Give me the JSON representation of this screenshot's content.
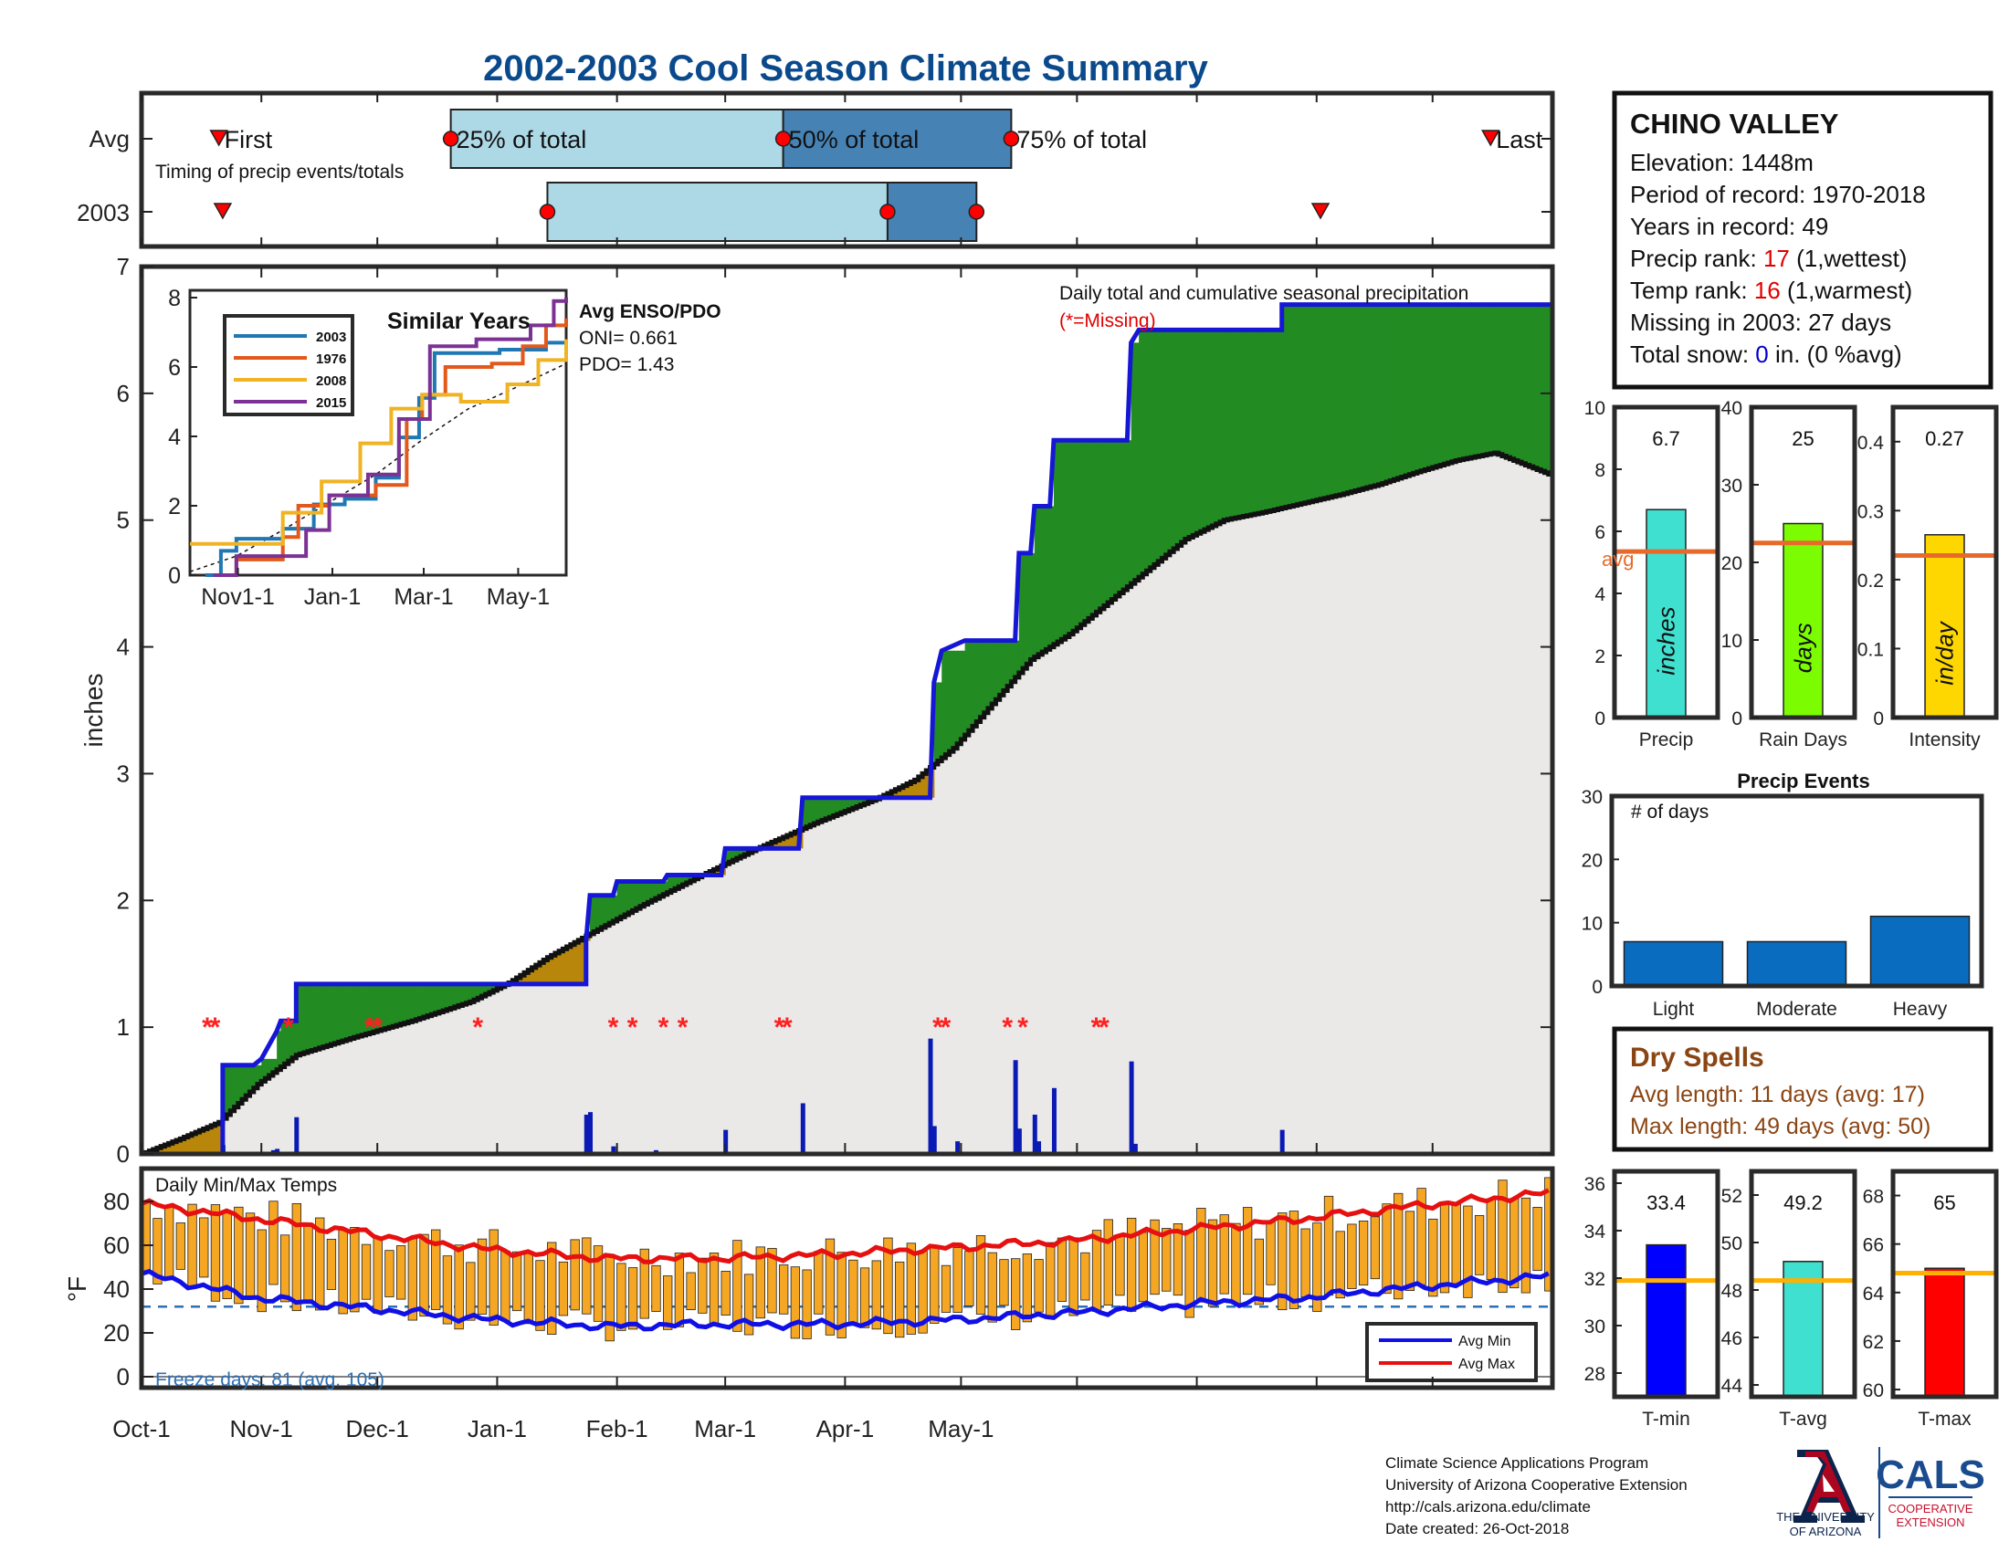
{
  "title": "2002-2003 Cool Season Climate Summary",
  "colors": {
    "title": "#0a4a8c",
    "q1": "#add8e6",
    "q2": "#4682b4",
    "cum_line": "#1616d6",
    "above": "#228b22",
    "below": "#b8860b",
    "avg_fill": "#ebe8e8",
    "daily_bar": "#0a1ab4",
    "missing": "#ff2020",
    "rank_red": "#e00000",
    "snow_blue": "#0000cc",
    "dry_brown": "#8b4513",
    "temp_bar": "#f5a623",
    "avg_min": "#1010e6",
    "avg_max": "#e61010",
    "freeze": "#2e6fb5",
    "avg_marker": "#e86a2a",
    "avg_marker_temp": "#ffb000",
    "ua_red": "#ab0520",
    "ua_blue": "#0c234b",
    "cals_blue": "#1b4b8f",
    "cals_red": "#c8102e"
  },
  "timing": {
    "row_labels": [
      "Avg",
      "2003"
    ],
    "subtitle": "Timing of precip events/totals",
    "labels": {
      "first": "First",
      "p25": "25% of total",
      "p50": "50% of total",
      "p75": "75% of total",
      "last": "Last"
    },
    "avg": {
      "first": 20,
      "p25": 80,
      "p50": 166,
      "p75": 225,
      "last": 349
    },
    "y2003": {
      "first": 21,
      "p25": 105,
      "p50": 193,
      "p75": 216,
      "last": 305
    }
  },
  "station": {
    "name": "CHINO VALLEY",
    "elevation": "Elevation: 1448m",
    "period": "Period of record: 1970-2018",
    "years": "Years in record: 49",
    "precip_rank_label": "Precip rank: ",
    "precip_rank_value": "17",
    "precip_rank_suffix": " (1,wettest)",
    "temp_rank_label": "Temp rank: ",
    "temp_rank_value": "16",
    "temp_rank_suffix": " (1,warmest)",
    "missing": "Missing in 2003: 27 days",
    "snow_label": "Total snow: ",
    "snow_value": "0",
    "snow_suffix": " in. (0 %avg)"
  },
  "main_chart": {
    "ylabel": "inches",
    "annotation_line1": "Daily total and cumulative seasonal precipitation",
    "annotation_line2": "(*=Missing)",
    "ylim": [
      0,
      7
    ],
    "yticks": [
      0,
      1,
      2,
      3,
      4,
      5,
      6,
      7
    ],
    "xlim": [
      0,
      365
    ],
    "cumulative_steps": [
      [
        0,
        0
      ],
      [
        21,
        0
      ],
      [
        21,
        0.7
      ],
      [
        29,
        0.7
      ],
      [
        31,
        0.75
      ],
      [
        35,
        0.97
      ],
      [
        36,
        1.05
      ],
      [
        40,
        1.05
      ],
      [
        40,
        1.34
      ],
      [
        94,
        1.34
      ],
      [
        95,
        1.34
      ],
      [
        115,
        1.34
      ],
      [
        115,
        1.68
      ],
      [
        116,
        2.04
      ],
      [
        122,
        2.04
      ],
      [
        123,
        2.15
      ],
      [
        135,
        2.15
      ],
      [
        136,
        2.2
      ],
      [
        150,
        2.2
      ],
      [
        151,
        2.41
      ],
      [
        170,
        2.41
      ],
      [
        171,
        2.81
      ],
      [
        204,
        2.81
      ],
      [
        205,
        3.72
      ],
      [
        207,
        3.97
      ],
      [
        213,
        4.05
      ],
      [
        226,
        4.05
      ],
      [
        227,
        4.74
      ],
      [
        230,
        4.74
      ],
      [
        231,
        5.11
      ],
      [
        235,
        5.11
      ],
      [
        236,
        5.63
      ],
      [
        255,
        5.63
      ],
      [
        256,
        6.4
      ],
      [
        258,
        6.5
      ],
      [
        295,
        6.5
      ],
      [
        295,
        6.7
      ],
      [
        365,
        6.7
      ]
    ],
    "avg_points": [
      [
        0,
        0
      ],
      [
        10,
        0.12
      ],
      [
        20,
        0.25
      ],
      [
        30,
        0.55
      ],
      [
        40,
        0.78
      ],
      [
        55,
        0.92
      ],
      [
        70,
        1.05
      ],
      [
        85,
        1.2
      ],
      [
        95,
        1.35
      ],
      [
        105,
        1.55
      ],
      [
        115,
        1.72
      ],
      [
        130,
        1.97
      ],
      [
        145,
        2.2
      ],
      [
        160,
        2.42
      ],
      [
        175,
        2.62
      ],
      [
        190,
        2.8
      ],
      [
        200,
        2.95
      ],
      [
        210,
        3.2
      ],
      [
        220,
        3.55
      ],
      [
        230,
        3.9
      ],
      [
        240,
        4.1
      ],
      [
        250,
        4.35
      ],
      [
        260,
        4.6
      ],
      [
        270,
        4.85
      ],
      [
        280,
        5.0
      ],
      [
        290,
        5.06
      ],
      [
        300,
        5.13
      ],
      [
        310,
        5.2
      ],
      [
        320,
        5.28
      ],
      [
        330,
        5.38
      ],
      [
        340,
        5.47
      ],
      [
        350,
        5.53
      ],
      [
        365,
        5.35
      ]
    ],
    "daily_bars": [
      [
        21,
        0.07
      ],
      [
        34,
        0.03
      ],
      [
        35,
        0.04
      ],
      [
        40,
        0.29
      ],
      [
        115,
        0.31
      ],
      [
        116,
        0.33
      ],
      [
        122,
        0.06
      ],
      [
        133,
        0.03
      ],
      [
        151,
        0.19
      ],
      [
        171,
        0.4
      ],
      [
        204,
        0.91
      ],
      [
        205,
        0.22
      ],
      [
        211,
        0.1
      ],
      [
        226,
        0.74
      ],
      [
        227,
        0.2
      ],
      [
        231,
        0.31
      ],
      [
        232,
        0.1
      ],
      [
        236,
        0.52
      ],
      [
        256,
        0.73
      ],
      [
        257,
        0.08
      ],
      [
        295,
        0.19
      ]
    ],
    "missing_days": [
      17,
      19,
      38,
      59,
      61,
      87,
      122,
      127,
      135,
      140,
      165,
      167,
      206,
      208,
      224,
      228,
      247,
      249
    ],
    "missing_y": 1.0
  },
  "inset": {
    "title": "Similar Years",
    "ylim": [
      0,
      8
    ],
    "yticks": [
      0,
      2,
      4,
      6,
      8
    ],
    "xlim": [
      0,
      243
    ],
    "xticks": [
      {
        "x": 31,
        "label": "Nov1-1"
      },
      {
        "x": 92,
        "label": "Jan-1"
      },
      {
        "x": 151,
        "label": "Mar-1"
      },
      {
        "x": 212,
        "label": "May-1"
      }
    ],
    "legend_items": [
      "2003",
      "1976",
      "2008",
      "2015"
    ],
    "series": [
      {
        "name": "2003",
        "color": "#1f77b4",
        "steps": [
          [
            10,
            0
          ],
          [
            20,
            0.7
          ],
          [
            30,
            1.05
          ],
          [
            60,
            1.34
          ],
          [
            80,
            2.04
          ],
          [
            100,
            2.2
          ],
          [
            120,
            2.81
          ],
          [
            135,
            3.97
          ],
          [
            148,
            5.11
          ],
          [
            158,
            6.4
          ],
          [
            200,
            6.5
          ],
          [
            230,
            6.7
          ],
          [
            243,
            6.7
          ]
        ]
      },
      {
        "name": "1976",
        "color": "#e2591b",
        "steps": [
          [
            20,
            0
          ],
          [
            30,
            0.45
          ],
          [
            60,
            1.1
          ],
          [
            70,
            2.0
          ],
          [
            90,
            2.3
          ],
          [
            120,
            2.6
          ],
          [
            140,
            4.5
          ],
          [
            150,
            5.2
          ],
          [
            165,
            6.0
          ],
          [
            195,
            6.1
          ],
          [
            215,
            6.6
          ],
          [
            230,
            7.2
          ],
          [
            243,
            7.4
          ]
        ]
      },
      {
        "name": "2008",
        "color": "#f0b323",
        "steps": [
          [
            0,
            0.9
          ],
          [
            35,
            0.9
          ],
          [
            60,
            1.8
          ],
          [
            85,
            2.7
          ],
          [
            110,
            3.8
          ],
          [
            130,
            4.8
          ],
          [
            150,
            5.2
          ],
          [
            175,
            5.0
          ],
          [
            205,
            5.5
          ],
          [
            225,
            6.2
          ],
          [
            243,
            6.8
          ]
        ]
      },
      {
        "name": "2015",
        "color": "#7b3294",
        "steps": [
          [
            15,
            0
          ],
          [
            30,
            0.55
          ],
          [
            75,
            1.3
          ],
          [
            90,
            2.3
          ],
          [
            115,
            2.9
          ],
          [
            135,
            4.5
          ],
          [
            155,
            6.6
          ],
          [
            185,
            6.8
          ],
          [
            220,
            7.2
          ],
          [
            235,
            7.9
          ],
          [
            243,
            8.0
          ]
        ]
      }
    ],
    "avg_curve": [
      [
        0,
        0.1
      ],
      [
        30,
        0.55
      ],
      [
        60,
        1.3
      ],
      [
        90,
        2.1
      ],
      [
        120,
        2.9
      ],
      [
        150,
        3.9
      ],
      [
        180,
        4.8
      ],
      [
        210,
        5.4
      ],
      [
        243,
        6.1
      ]
    ]
  },
  "enso": {
    "title": "Avg ENSO/PDO",
    "oni": "ONI= 0.661",
    "pdo": "PDO= 1.43"
  },
  "bar_panels": [
    {
      "value_label": "6.7",
      "value": 6.7,
      "avg": 5.35,
      "ylim": [
        0,
        10
      ],
      "yticks": [
        0,
        2,
        4,
        6,
        8,
        10
      ],
      "color": "#40e0d0",
      "label": "inches",
      "xlabel": "Precip",
      "avg_text": "avg"
    },
    {
      "value_label": "25",
      "value": 25,
      "avg": 22.5,
      "ylim": [
        0,
        40
      ],
      "yticks": [
        0,
        10,
        20,
        30,
        40
      ],
      "color": "#7cfc00",
      "label": "days",
      "xlabel": "Rain Days"
    },
    {
      "value_label": "0.27",
      "value": 0.265,
      "avg": 0.235,
      "ylim": [
        0,
        0.45
      ],
      "yticks": [
        0,
        0.1,
        0.2,
        0.3,
        0.4
      ],
      "color": "#ffd700",
      "label": "in/day",
      "xlabel": "Intensity"
    }
  ],
  "events": {
    "title": "Precip Events",
    "ylabel_inside": "# of days",
    "categories": [
      "Light",
      "Moderate",
      "Heavy"
    ],
    "values": [
      7,
      7,
      11
    ],
    "ylim": [
      0,
      30
    ],
    "yticks": [
      0,
      10,
      20,
      30
    ],
    "color": "#0a6cbf"
  },
  "dry_spells": {
    "title": "Dry Spells",
    "avg_length": "Avg length: 11 days (avg: 17)",
    "max_length": "Max length: 49 days (avg: 50)"
  },
  "temps": {
    "title": "Daily Min/Max Temps",
    "ylabel": "°F",
    "ylim": [
      -5,
      95
    ],
    "yticks": [
      0,
      20,
      40,
      60,
      80
    ],
    "freeze_line": 32,
    "freeze_text": "Freeze days: 81 (avg. 105)",
    "legend": [
      "Avg Min",
      "Avg Max"
    ],
    "avg_min_points": [
      [
        0,
        47
      ],
      [
        30,
        36
      ],
      [
        60,
        31
      ],
      [
        90,
        26
      ],
      [
        120,
        23
      ],
      [
        150,
        24
      ],
      [
        180,
        24
      ],
      [
        210,
        26
      ],
      [
        240,
        29
      ],
      [
        270,
        33
      ],
      [
        300,
        36
      ],
      [
        330,
        41
      ],
      [
        365,
        46
      ]
    ],
    "avg_max_points": [
      [
        0,
        79
      ],
      [
        30,
        72
      ],
      [
        60,
        65
      ],
      [
        90,
        58
      ],
      [
        120,
        54
      ],
      [
        150,
        54
      ],
      [
        180,
        56
      ],
      [
        210,
        59
      ],
      [
        240,
        62
      ],
      [
        270,
        67
      ],
      [
        300,
        72
      ],
      [
        330,
        78
      ],
      [
        365,
        84
      ]
    ]
  },
  "x_axis": {
    "ticks": [
      {
        "x": 0,
        "label": "Oct-1"
      },
      {
        "x": 31,
        "label": "Nov-1"
      },
      {
        "x": 61,
        "label": "Dec-1"
      },
      {
        "x": 92,
        "label": "Jan-1"
      },
      {
        "x": 123,
        "label": "Feb-1"
      },
      {
        "x": 151,
        "label": "Mar-1"
      },
      {
        "x": 182,
        "label": "Apr-1"
      },
      {
        "x": 212,
        "label": "May-1"
      }
    ],
    "extra_ticks": [
      242,
      273,
      304,
      334
    ]
  },
  "temp_panels": [
    {
      "value_label": "33.4",
      "value": 33.4,
      "avg": 31.9,
      "ylim": [
        27,
        36.5
      ],
      "yticks": [
        28,
        30,
        32,
        34,
        36
      ],
      "color": "#0000ff",
      "xlabel": "T-min"
    },
    {
      "value_label": "49.2",
      "value": 49.2,
      "avg": 48.4,
      "ylim": [
        43.5,
        53
      ],
      "yticks": [
        44,
        46,
        48,
        50,
        52
      ],
      "color": "#40e0d0",
      "xlabel": "T-avg"
    },
    {
      "value_label": "65",
      "value": 65.0,
      "avg": 64.8,
      "ylim": [
        59.7,
        69
      ],
      "yticks": [
        60,
        62,
        64,
        66,
        68
      ],
      "color": "#ff0000",
      "xlabel": "T-max"
    }
  ],
  "footer": {
    "line1": "Climate Science Applications Program",
    "line2": "University of Arizona Cooperative Extension",
    "line3": "http://cals.arizona.edu/climate",
    "line4": " Date created: 26-Oct-2018"
  },
  "logos": {
    "ua_line1": "THE UNIVERSITY",
    "ua_line2": "OF ARIZONA",
    "cals": "CALS",
    "cals_sub1": "COOPERATIVE",
    "cals_sub2": "EXTENSION"
  }
}
